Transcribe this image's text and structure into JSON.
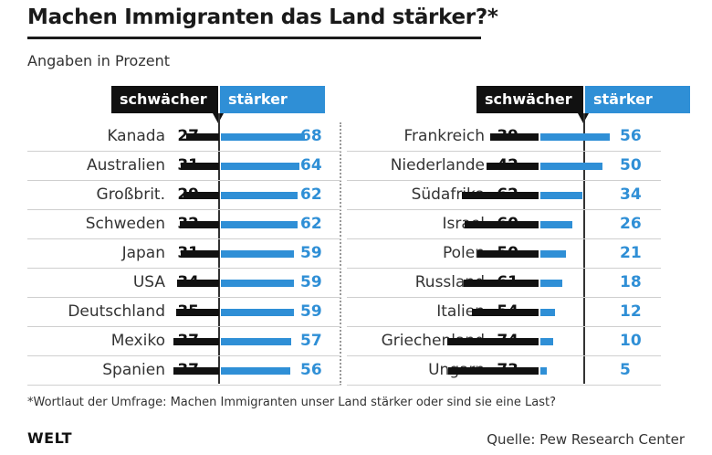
{
  "title": "Machen Immigranten das Land stärker?*",
  "subtitle": "Angaben in Prozent",
  "legend": {
    "weaker": "schwächer",
    "stronger": "stärker"
  },
  "colors": {
    "weaker": "#111111",
    "stronger": "#2f8fd6"
  },
  "chart_data": {
    "type": "bar",
    "orientation": "horizontal-diverging",
    "title": "Machen Immigranten das Land stärker?*",
    "subtitle": "Angaben in Prozent",
    "series": [
      {
        "name": "schwächer",
        "color": "#111111"
      },
      {
        "name": "stärker",
        "color": "#2f8fd6"
      }
    ],
    "panels": [
      {
        "rows": [
          {
            "country": "Kanada",
            "weaker": 27,
            "stronger": 68
          },
          {
            "country": "Australien",
            "weaker": 31,
            "stronger": 64
          },
          {
            "country": "Großbrit.",
            "weaker": 29,
            "stronger": 62
          },
          {
            "country": "Schweden",
            "weaker": 32,
            "stronger": 62
          },
          {
            "country": "Japan",
            "weaker": 31,
            "stronger": 59
          },
          {
            "country": "USA",
            "weaker": 34,
            "stronger": 59
          },
          {
            "country": "Deutschland",
            "weaker": 35,
            "stronger": 59
          },
          {
            "country": "Mexiko",
            "weaker": 37,
            "stronger": 57
          },
          {
            "country": "Spanien",
            "weaker": 37,
            "stronger": 56
          }
        ]
      },
      {
        "rows": [
          {
            "country": "Frankreich",
            "weaker": 39,
            "stronger": 56
          },
          {
            "country": "Niederlande",
            "weaker": 42,
            "stronger": 50
          },
          {
            "country": "Südafrika",
            "weaker": 62,
            "stronger": 34
          },
          {
            "country": "Israel",
            "weaker": 60,
            "stronger": 26
          },
          {
            "country": "Polen",
            "weaker": 50,
            "stronger": 21
          },
          {
            "country": "Russland",
            "weaker": 61,
            "stronger": 18
          },
          {
            "country": "Italien",
            "weaker": 54,
            "stronger": 12
          },
          {
            "country": "Griechenland",
            "weaker": 74,
            "stronger": 10
          },
          {
            "country": "Ungarn",
            "weaker": 73,
            "stronger": 5
          }
        ]
      }
    ]
  },
  "footnote": "*Wortlaut der Umfrage: Machen Immigranten unser Land stärker oder sind sie eine Last?",
  "logo": "WELT",
  "source": "Quelle: Pew Research Center"
}
